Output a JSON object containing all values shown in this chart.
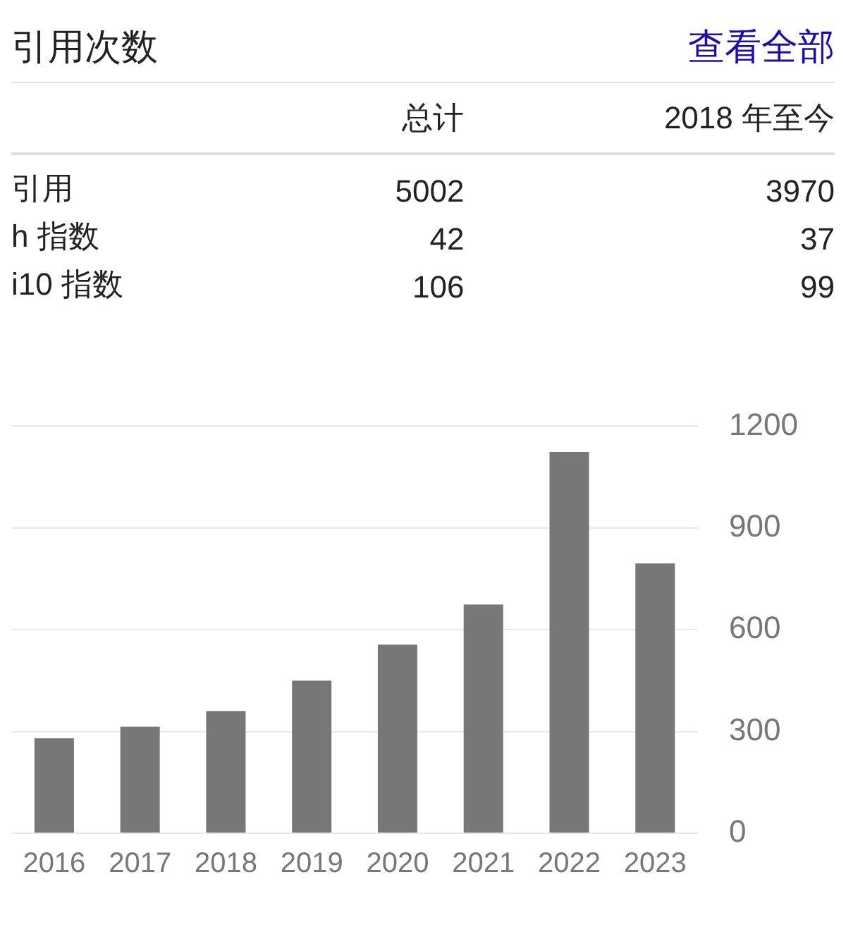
{
  "chart_data": {
    "type": "bar",
    "title": "引用次数",
    "annotations": [
      "查看全部",
      "总计",
      "2018 年至今",
      "引用",
      "5002",
      "3970",
      "h 指数",
      "42",
      "37",
      "i10 指数",
      "106",
      "99"
    ],
    "categories": [
      "2016",
      "2017",
      "2018",
      "2019",
      "2020",
      "2021",
      "2022",
      "2023"
    ],
    "values": [
      280,
      314,
      360,
      450,
      556,
      674,
      1124,
      795
    ],
    "color": "#777777",
    "ylim": [
      0,
      1200
    ],
    "yticks": [
      0,
      300,
      600,
      900,
      1200
    ],
    "grid": "y",
    "legend": false
  }
}
